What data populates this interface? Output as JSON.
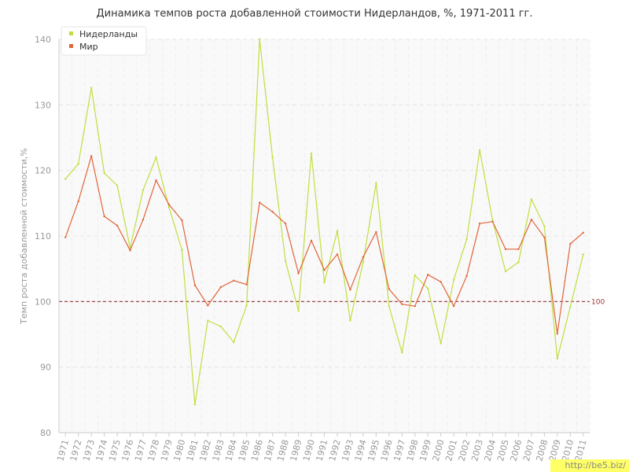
{
  "chart_data": {
    "type": "line",
    "title": "Динамика темпов роста добавленной стоимости Нидерландов, %, 1971-2011 гг.",
    "ylabel": "Темп роста добавленной стоимости,%",
    "xlabel": "",
    "ylim": [
      80,
      140
    ],
    "yticks": [
      80,
      90,
      100,
      110,
      120,
      130,
      140
    ],
    "x": [
      "1971",
      "1972",
      "1973",
      "1974",
      "1975",
      "1976",
      "1977",
      "1978",
      "1979",
      "1980",
      "1981",
      "1982",
      "1983",
      "1984",
      "1985",
      "1986",
      "1987",
      "1988",
      "1989",
      "1990",
      "1991",
      "1992",
      "1993",
      "1994",
      "1995",
      "1996",
      "1997",
      "1998",
      "1999",
      "2000",
      "2001",
      "2002",
      "2003",
      "2004",
      "2005",
      "2006",
      "2007",
      "2008",
      "2009",
      "2010",
      "2011"
    ],
    "series": [
      {
        "name": "Нидерланды",
        "color": "#bfdf3f",
        "values": [
          118.7,
          121.0,
          132.6,
          119.6,
          117.7,
          108.2,
          117.0,
          122.0,
          114.4,
          107.9,
          84.3,
          97.1,
          96.2,
          93.8,
          99.4,
          140.0,
          122.0,
          106.2,
          98.6,
          122.6,
          102.9,
          110.8,
          97.1,
          106.0,
          118.1,
          99.3,
          92.2,
          104.0,
          102.0,
          93.6,
          103.3,
          109.5,
          123.1,
          112.4,
          104.6,
          106.0,
          115.6,
          111.5,
          91.3,
          99.2,
          107.2
        ]
      },
      {
        "name": "Мир",
        "color": "#e0653a",
        "values": [
          109.8,
          115.3,
          122.2,
          113.0,
          111.6,
          107.8,
          112.5,
          118.5,
          114.8,
          112.4,
          102.5,
          99.4,
          102.2,
          103.2,
          102.6,
          115.1,
          113.7,
          111.9,
          104.3,
          109.3,
          104.8,
          107.2,
          101.8,
          106.8,
          110.6,
          101.9,
          99.6,
          99.3,
          104.1,
          103.0,
          99.3,
          103.9,
          111.9,
          112.2,
          108.0,
          108.0,
          112.5,
          109.8,
          95.1,
          108.8,
          110.5
        ]
      }
    ],
    "reference_line": {
      "value": 100,
      "label": "100",
      "color": "#993333"
    },
    "grid": true,
    "legend_position": "top-left"
  },
  "watermark": "http://be5.biz/"
}
